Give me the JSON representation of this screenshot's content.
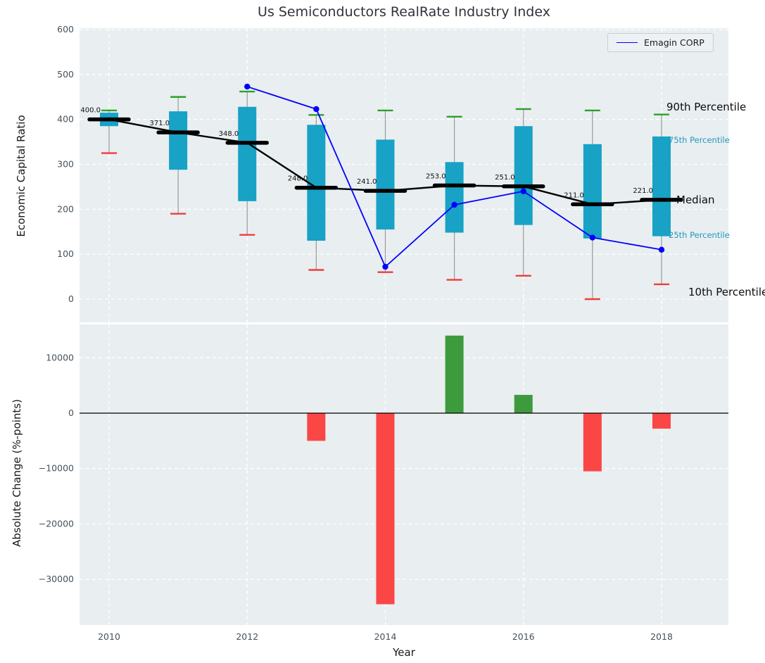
{
  "title": "Us Semiconductors RealRate Industry Index",
  "legend": {
    "label": "Emagin CORP"
  },
  "annotations": {
    "p90": "90th Percentile",
    "p75": "75th Percentile",
    "median": "Median",
    "p25": "25th Percentile",
    "p10": "10th Percentile"
  },
  "colors": {
    "box": "#17a2c6",
    "p90_cap": "#2ca02c",
    "p10_cap": "#f03c3c",
    "whisker": "#999999",
    "median": "#000000",
    "emagin": "#0000ff",
    "bar_pos": "#3d9b3d",
    "bar_neg": "#fb4646",
    "axes_bg": "#e9eef0",
    "grid": "#ffffff",
    "tick": "#44525c",
    "pct_label": "#2596be",
    "median_label": "#111111"
  },
  "chart_data": [
    {
      "type": "boxplot+line",
      "title": "Us Semiconductors RealRate Industry Index",
      "ylabel": "Economic Capital Ratio",
      "ylim": [
        0,
        600
      ],
      "yticks": [
        0,
        100,
        200,
        300,
        400,
        500,
        600
      ],
      "xticks": [
        2010,
        2012,
        2014,
        2016,
        2018
      ],
      "categories": [
        2010,
        2011,
        2012,
        2013,
        2014,
        2015,
        2016,
        2017,
        2018
      ],
      "p90": [
        420,
        450,
        462,
        410,
        420,
        406,
        423,
        420,
        411
      ],
      "p75": [
        415,
        418,
        428,
        388,
        355,
        305,
        385,
        345,
        362
      ],
      "median": [
        400,
        371,
        348,
        248,
        241,
        253,
        251,
        211,
        221
      ],
      "p25": [
        385,
        288,
        218,
        130,
        155,
        148,
        165,
        135,
        140
      ],
      "p10": [
        325,
        190,
        143,
        65,
        60,
        43,
        52,
        0,
        33
      ],
      "median_labels": [
        "400.0",
        "371.0",
        "348.0",
        "248.0",
        "241.0",
        "253.0",
        "251.0",
        "211.0",
        "221.0"
      ],
      "series": [
        {
          "name": "Emagin CORP",
          "x": [
            2012,
            2013,
            2014,
            2015,
            2016,
            2017,
            2018
          ],
          "values": [
            473,
            423,
            72,
            210,
            240,
            137,
            110
          ]
        }
      ],
      "legend_position": "upper right",
      "grid": true
    },
    {
      "type": "bar",
      "ylabel": "Absolute Change (%-points)",
      "xlabel": "Year",
      "ylim": [
        -38000,
        16200
      ],
      "yticks": [
        10000,
        0,
        -10000,
        -20000,
        -30000
      ],
      "xticks": [
        2010,
        2012,
        2014,
        2016,
        2018
      ],
      "categories": [
        2013,
        2014,
        2015,
        2016,
        2017,
        2018
      ],
      "values": [
        -5000,
        -34500,
        14000,
        3300,
        -10500,
        -2800
      ],
      "grid": true
    }
  ]
}
